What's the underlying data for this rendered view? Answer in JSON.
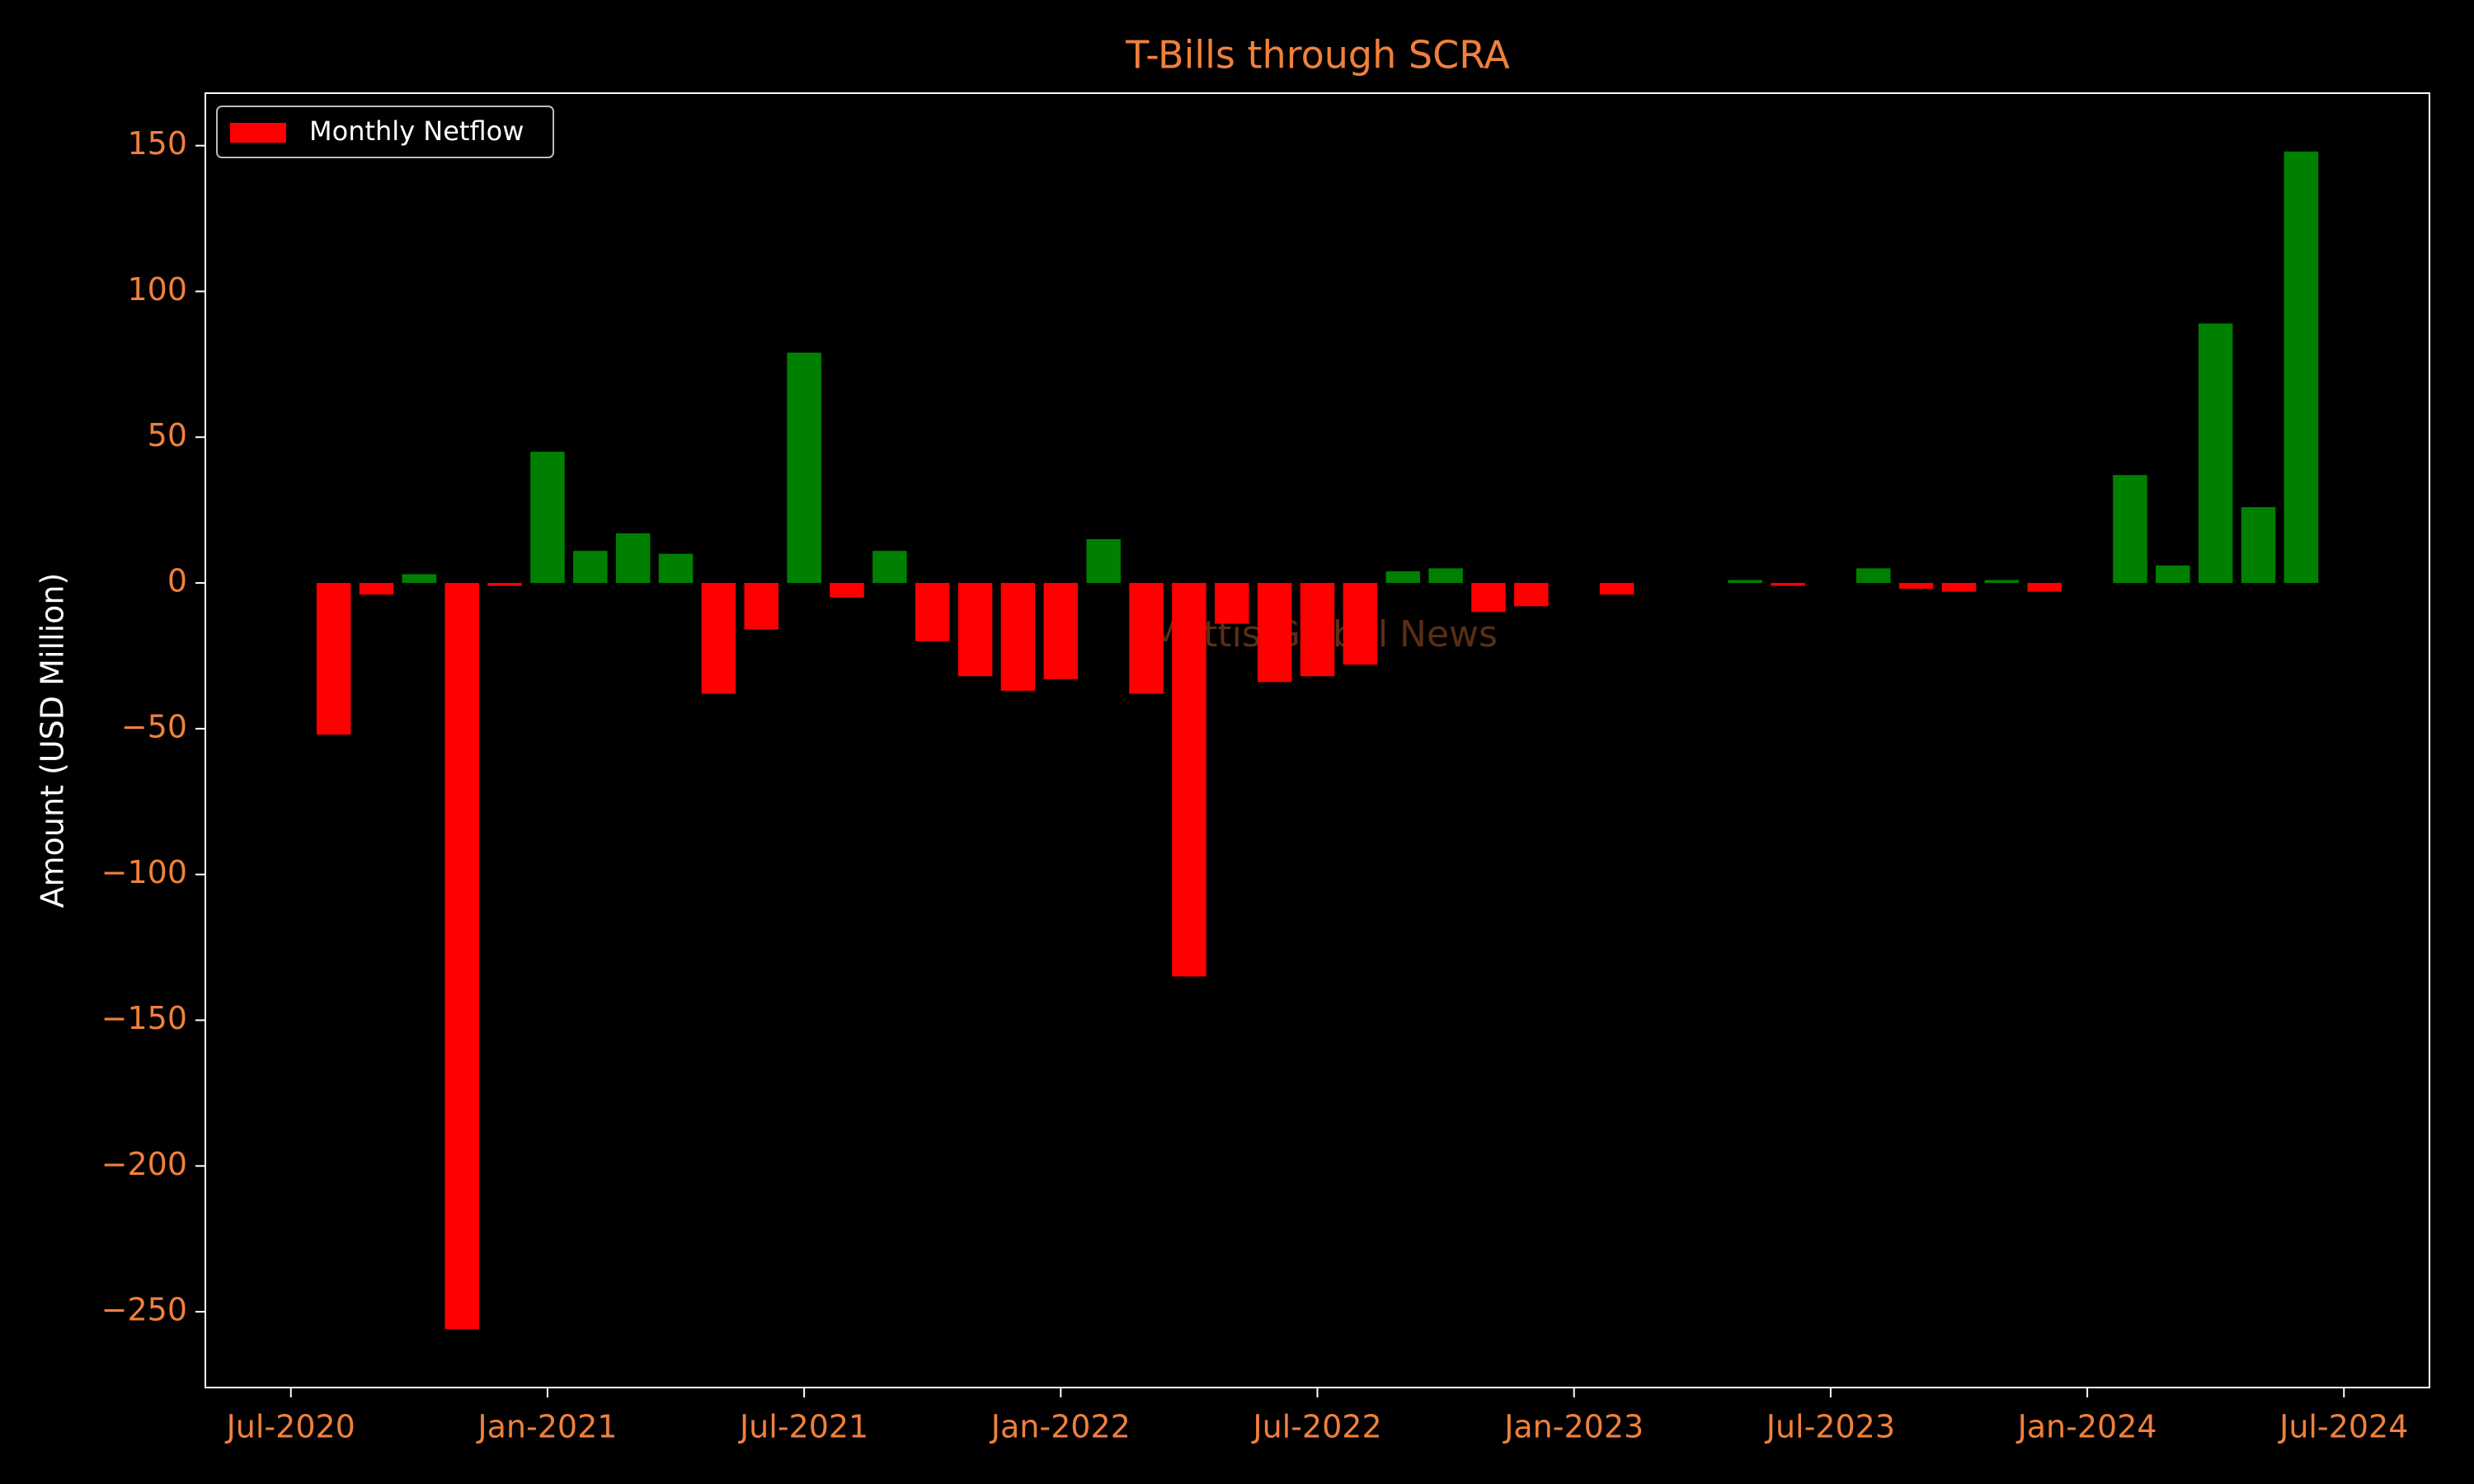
{
  "chart_data": {
    "type": "bar",
    "title": "T-Bills through SCRA",
    "y_label": "Amount (USD Million)",
    "watermark": "Mettis Global News",
    "x": [
      "2020-08",
      "2020-09",
      "2020-10",
      "2020-11",
      "2020-12",
      "2021-01",
      "2021-02",
      "2021-03",
      "2021-04",
      "2021-05",
      "2021-06",
      "2021-07",
      "2021-08",
      "2021-09",
      "2021-10",
      "2021-11",
      "2021-12",
      "2022-01",
      "2022-02",
      "2022-03",
      "2022-04",
      "2022-05",
      "2022-06",
      "2022-07",
      "2022-08",
      "2022-09",
      "2022-10",
      "2022-11",
      "2022-12",
      "2023-01",
      "2023-02",
      "2023-03",
      "2023-04",
      "2023-05",
      "2023-06",
      "2023-07",
      "2023-08",
      "2023-09",
      "2023-10",
      "2023-11",
      "2023-12",
      "2024-01",
      "2024-02",
      "2024-03",
      "2024-04",
      "2024-05",
      "2024-06"
    ],
    "series": [
      {
        "name": "Monthly Netflow",
        "color": "#ff0000",
        "values": [
          -52,
          -4,
          3,
          -256,
          -1,
          45,
          11,
          17,
          10,
          -38,
          -16,
          79,
          -5,
          11,
          -20,
          -32,
          -37,
          -33,
          15,
          -38,
          -135,
          -14,
          -34,
          -32,
          -28,
          4,
          5,
          -10,
          -8,
          0,
          -4,
          0,
          0,
          1,
          -1,
          0,
          5,
          -2,
          -3,
          1,
          -3,
          0,
          37,
          6,
          89,
          26,
          148
        ]
      }
    ],
    "positive_color": "#008000",
    "negative_color": "#ff0000",
    "xlim": [
      "2020-05",
      "2024-09"
    ],
    "xticks": [
      {
        "value": "2020-07",
        "label": "Jul-2020"
      },
      {
        "value": "2021-01",
        "label": "Jan-2021"
      },
      {
        "value": "2021-07",
        "label": "Jul-2021"
      },
      {
        "value": "2022-01",
        "label": "Jan-2022"
      },
      {
        "value": "2022-07",
        "label": "Jul-2022"
      },
      {
        "value": "2023-01",
        "label": "Jan-2023"
      },
      {
        "value": "2023-07",
        "label": "Jul-2023"
      },
      {
        "value": "2024-01",
        "label": "Jan-2024"
      },
      {
        "value": "2024-07",
        "label": "Jul-2024"
      }
    ],
    "ylim": [
      -276,
      168
    ],
    "yticks": [
      {
        "value": -250,
        "label": "−250"
      },
      {
        "value": -200,
        "label": "−200"
      },
      {
        "value": -150,
        "label": "−150"
      },
      {
        "value": -100,
        "label": "−100"
      },
      {
        "value": -50,
        "label": "−50"
      },
      0,
      50,
      100,
      150
    ],
    "legend": "upper left"
  }
}
